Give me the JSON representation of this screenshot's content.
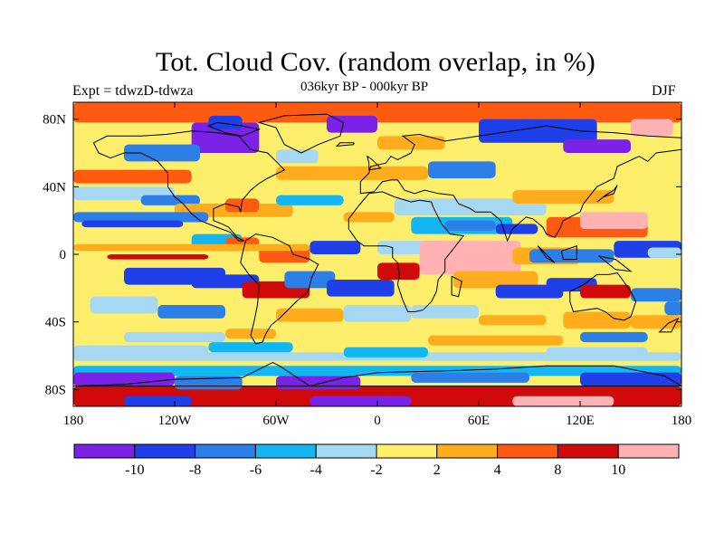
{
  "header": {
    "title": "Tot. Cloud Cov. (random overlap, in %)",
    "subtitle": "036kyr BP - 000kyr BP",
    "left_label": "Expt = tdwzD-tdwza",
    "right_label": "DJF"
  },
  "axes": {
    "lat_ticks": [
      {
        "value": 80,
        "label": "80N"
      },
      {
        "value": 40,
        "label": "40N"
      },
      {
        "value": 0,
        "label": "0"
      },
      {
        "value": -40,
        "label": "40S"
      },
      {
        "value": -80,
        "label": "80S"
      }
    ],
    "lon_ticks": [
      {
        "value": -180,
        "label": "180"
      },
      {
        "value": -120,
        "label": "120W"
      },
      {
        "value": -60,
        "label": "60W"
      },
      {
        "value": 0,
        "label": "0"
      },
      {
        "value": 60,
        "label": "60E"
      },
      {
        "value": 120,
        "label": "120E"
      },
      {
        "value": 180,
        "label": "180"
      }
    ],
    "lon_range": [
      -180,
      180
    ],
    "lat_range": [
      -90,
      90
    ]
  },
  "colorbar": {
    "colors": [
      "#7a22e6",
      "#1f3fe8",
      "#2d7fe8",
      "#13b6f0",
      "#a7d8f2",
      "#fdee6c",
      "#ffad1d",
      "#ff5a12",
      "#d00a0a",
      "#ffb1b3"
    ],
    "tick_labels": [
      "-10",
      "-8",
      "-6",
      "-4",
      "-2",
      "2",
      "4",
      "8",
      "10"
    ]
  }
}
